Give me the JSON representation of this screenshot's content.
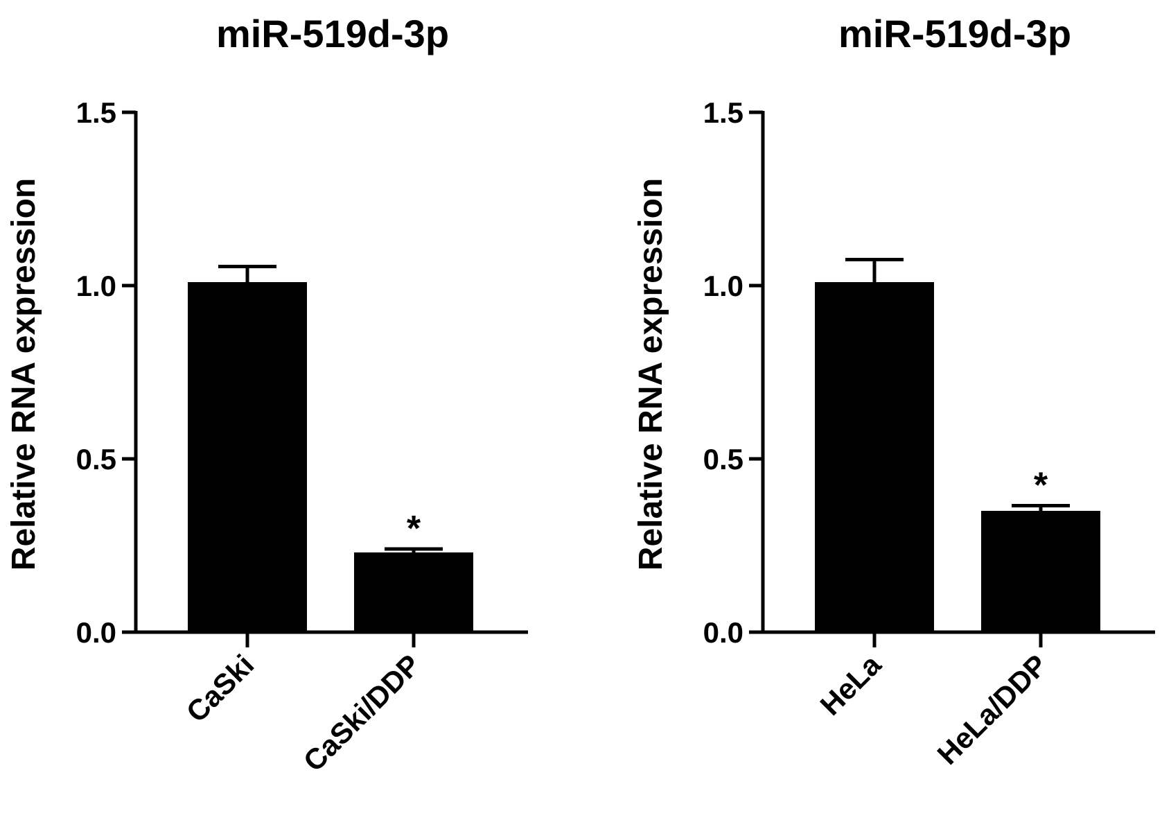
{
  "chart_data": [
    {
      "type": "bar",
      "title": "miR-519d-3p",
      "xlabel": "",
      "ylabel": "Relative RNA expression",
      "ylim": [
        0,
        1.5
      ],
      "yticks": [
        "0.0",
        "0.5",
        "1.0",
        "1.5"
      ],
      "categories": [
        "CaSki",
        "CaSki/DDP"
      ],
      "values": [
        1.01,
        0.23
      ],
      "errors": [
        0.045,
        0.01
      ],
      "annotations": [
        "",
        "*"
      ],
      "bar_color": "#000000",
      "grid": false,
      "legend": "none"
    },
    {
      "type": "bar",
      "title": "miR-519d-3p",
      "xlabel": "",
      "ylabel": "Relative RNA expression",
      "ylim": [
        0,
        1.5
      ],
      "yticks": [
        "0.0",
        "0.5",
        "1.0",
        "1.5"
      ],
      "categories": [
        "HeLa",
        "HeLa/DDP"
      ],
      "values": [
        1.01,
        0.35
      ],
      "errors": [
        0.065,
        0.015
      ],
      "annotations": [
        "",
        "*"
      ],
      "bar_color": "#000000",
      "grid": false,
      "legend": "none"
    }
  ]
}
